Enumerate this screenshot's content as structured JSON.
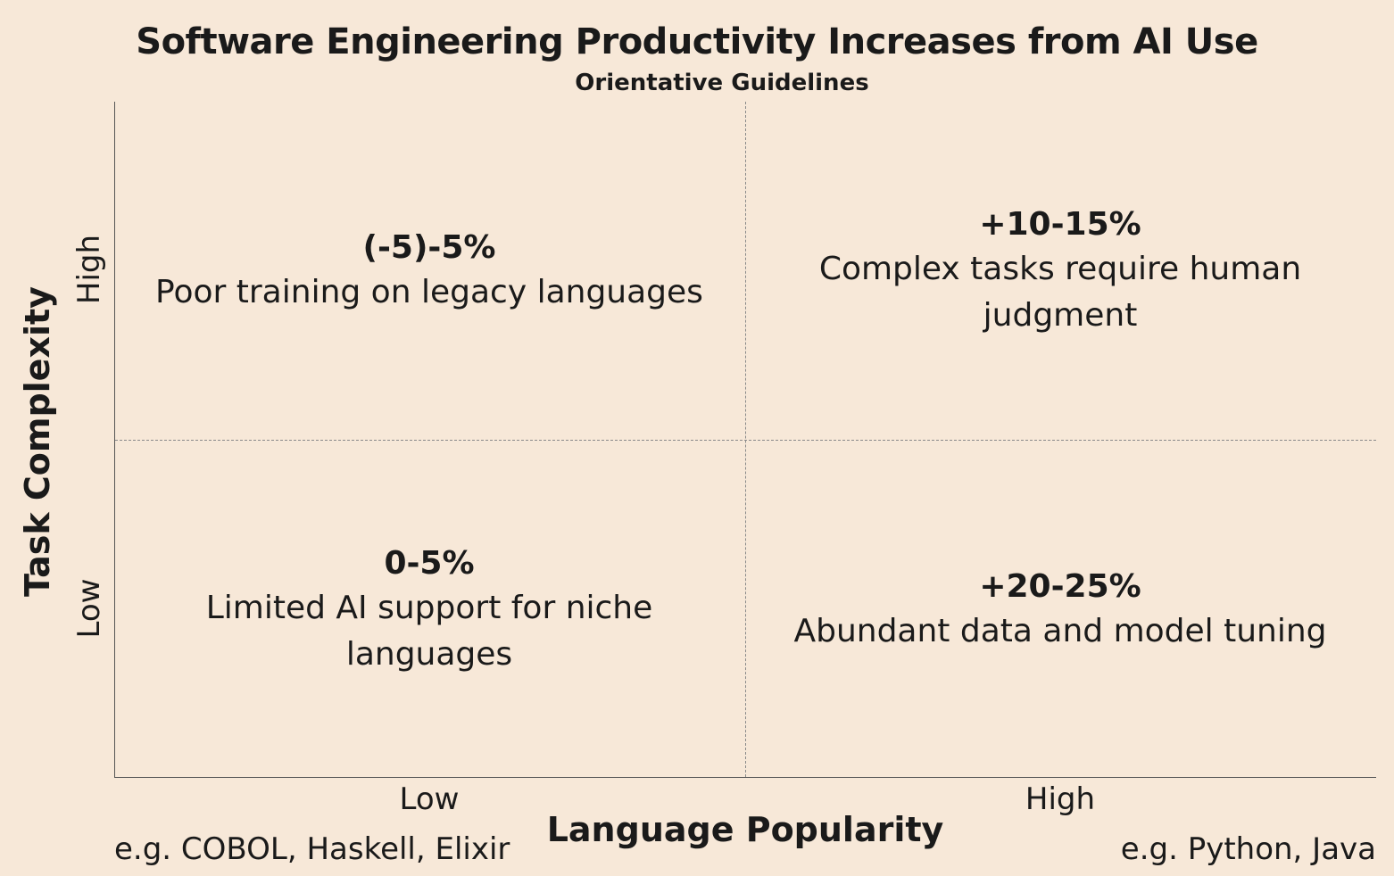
{
  "title": "Software Engineering Productivity Increases from AI Use",
  "subtitle": "Orientative Guidelines",
  "y_axis": {
    "title": "Task Complexity",
    "high_label": "High",
    "low_label": "Low"
  },
  "x_axis": {
    "title": "Language Popularity",
    "low_label": "Low",
    "high_label": "High",
    "low_example": "e.g. COBOL, Haskell, Elixir",
    "high_example": "e.g. Python, Java"
  },
  "quadrants": {
    "high_complexity_low_popularity": {
      "value": "(-5)-5%",
      "description": "Poor training on legacy languages"
    },
    "high_complexity_high_popularity": {
      "value": "+10-15%",
      "description": "Complex tasks require human judgment"
    },
    "low_complexity_low_popularity": {
      "value": "0-5%",
      "description": "Limited AI support for niche languages"
    },
    "low_complexity_high_popularity": {
      "value": "+20-25%",
      "description": "Abundant data and model tuning"
    }
  }
}
